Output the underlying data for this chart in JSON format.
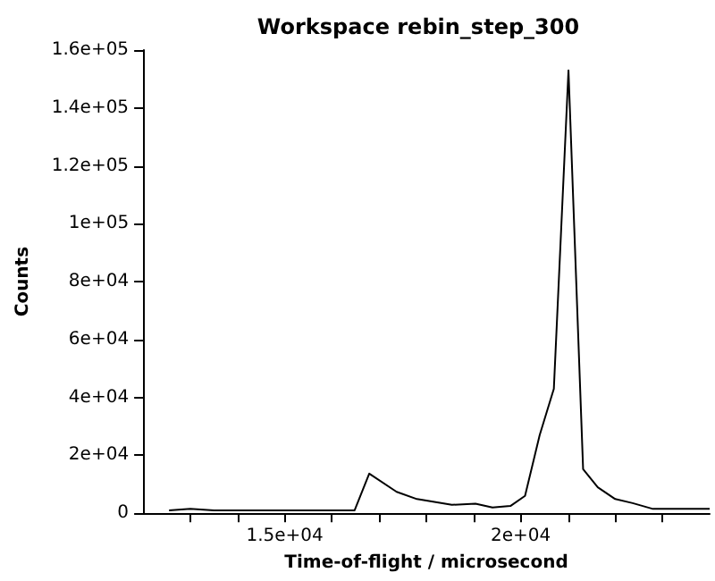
{
  "chart_data": {
    "type": "line",
    "title": "Workspace rebin_step_300",
    "xlabel": "Time-of-flight / microsecond",
    "ylabel": "Counts",
    "x": [
      12550,
      13000,
      13500,
      16480,
      16790,
      17370,
      17800,
      18540,
      19040,
      19400,
      19780,
      20090,
      20400,
      20700,
      21010,
      21320,
      21630,
      22000,
      22370,
      22800,
      24000
    ],
    "series": [
      {
        "color": "#000000",
        "values": [
          1000,
          1500,
          1000,
          1000,
          13700,
          7400,
          4900,
          2900,
          3300,
          2000,
          2500,
          6000,
          27000,
          43000,
          153000,
          15200,
          9000,
          4900,
          3500,
          1500,
          1500
        ]
      }
    ],
    "xlim": [
      12000,
      24000
    ],
    "xticks": [
      {
        "value": 13000,
        "label": null
      },
      {
        "value": 14000,
        "label": null
      },
      {
        "value": 15000,
        "label": "1.5e+04"
      },
      {
        "value": 16000,
        "label": null
      },
      {
        "value": 17000,
        "label": null
      },
      {
        "value": 18000,
        "label": null
      },
      {
        "value": 19000,
        "label": null
      },
      {
        "value": 20000,
        "label": "2e+04"
      },
      {
        "value": 21000,
        "label": null
      },
      {
        "value": 22000,
        "label": null
      },
      {
        "value": 23000,
        "label": null
      }
    ],
    "ylim": [
      0,
      160000
    ],
    "yticks": [
      0,
      {
        "value": 20000,
        "label": "2e+04"
      },
      {
        "value": 40000,
        "label": "4e+04"
      },
      {
        "value": 60000,
        "label": "6e+04"
      },
      {
        "value": 80000,
        "label": "8e+04"
      },
      {
        "value": 100000,
        "label": "1e+05"
      },
      {
        "value": 120000,
        "label": "1.2e+05"
      },
      {
        "value": 140000,
        "label": "1.4e+05"
      },
      {
        "value": 160000,
        "label": "1.6e+05"
      }
    ],
    "grid": false,
    "marker": "none",
    "line_style": "solid"
  }
}
